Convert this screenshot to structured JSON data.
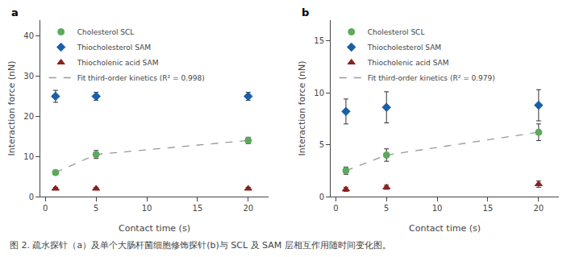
{
  "chart_data": [
    {
      "type": "scatter",
      "title": "a",
      "x": [
        1,
        5,
        20
      ],
      "xlabel": "Contact time (s)",
      "ylabel": "Interaction force (nN)",
      "xlim": [
        -0.5,
        22
      ],
      "xticks": [
        0,
        5,
        10,
        15,
        20
      ],
      "ylim": [
        0,
        44
      ],
      "yticks": [
        0,
        10,
        20,
        30,
        40
      ],
      "grid": false,
      "legend": "upper left",
      "series": [
        {
          "name": "Cholesterol SCL",
          "color": "#5aaa5a",
          "marker": "circle",
          "values": [
            6.0,
            10.5,
            14.0
          ],
          "errors": [
            0.5,
            1.0,
            0.8
          ]
        },
        {
          "name": "Thiocholesterol SAM",
          "color": "#1a5fa8",
          "marker": "diamond",
          "values": [
            25.0,
            25.0,
            25.0
          ],
          "errors": [
            1.5,
            1.0,
            1.0
          ]
        },
        {
          "name": "Thiocholenic acid SAM",
          "color": "#8b2020",
          "marker": "triangle-up",
          "values": [
            2.0,
            2.0,
            2.0
          ],
          "errors": [
            0.3,
            0.3,
            0.3
          ]
        },
        {
          "name": "Fit third-order kinetics (R² = 0.998)",
          "type": "line",
          "color": "#999999",
          "line_style": "dashed",
          "values": [
            6.0,
            10.5,
            14.0
          ]
        }
      ]
    },
    {
      "type": "scatter",
      "title": "b",
      "x": [
        1,
        5,
        20
      ],
      "xlabel": "Contact time (s)",
      "ylabel": "Interaction force (nN)",
      "xlim": [
        -0.5,
        22
      ],
      "xticks": [
        0,
        5,
        10,
        15,
        20
      ],
      "ylim": [
        0,
        17
      ],
      "yticks": [
        0,
        5,
        10,
        15
      ],
      "grid": false,
      "legend": "upper left",
      "series": [
        {
          "name": "Cholesterol SCL",
          "color": "#5aaa5a",
          "marker": "circle",
          "values": [
            2.5,
            4.0,
            6.2
          ],
          "errors": [
            0.35,
            0.6,
            0.8
          ]
        },
        {
          "name": "Thiocholesterol SAM",
          "color": "#1a5fa8",
          "marker": "diamond",
          "values": [
            8.2,
            8.6,
            8.8
          ],
          "errors": [
            1.2,
            1.5,
            1.5
          ]
        },
        {
          "name": "Thiocholenic acid SAM",
          "color": "#8b2020",
          "marker": "triangle-up",
          "values": [
            0.7,
            0.9,
            1.2
          ],
          "errors": [
            0.2,
            0.2,
            0.3
          ]
        },
        {
          "name": "Fit third-order kinetics (R² = 0.979)",
          "type": "line",
          "color": "#999999",
          "line_style": "dashed",
          "values": [
            2.5,
            4.0,
            6.2
          ]
        }
      ]
    }
  ],
  "caption": "图 2. 疏水探针（a）及单个大肠杆菌细胞修饰探针(b)与 SCL 及 SAM 层相互作用随时间变化图。"
}
